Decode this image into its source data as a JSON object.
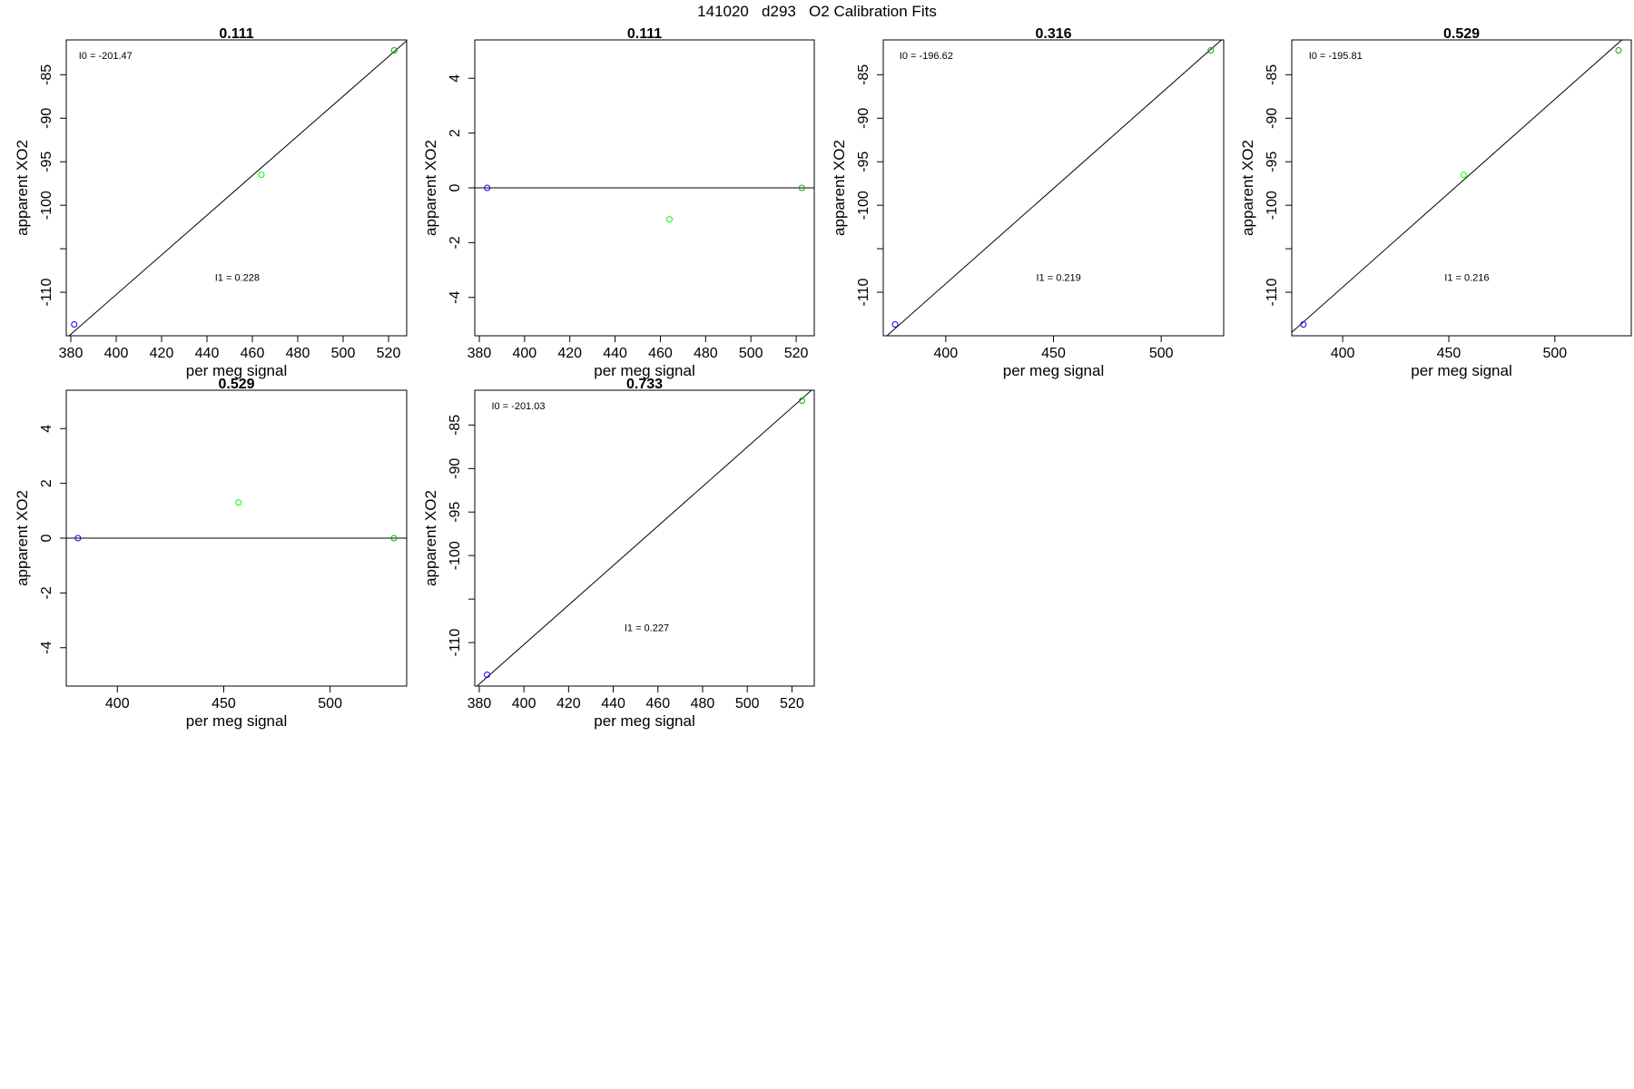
{
  "figure_title": "141020   d293   O2 Calibration Fits",
  "colors": {
    "pt_low": "#0000ff",
    "pt_mid": "#00ff00",
    "pt_high": "#00b000"
  },
  "chart_data": [
    {
      "type": "scatter",
      "title": "0.111",
      "xlabel": "per meg signal",
      "ylabel": "apparent XO2",
      "xlim": [
        378,
        528
      ],
      "ylim": [
        -115,
        -81
      ],
      "xticks": [
        380,
        400,
        420,
        440,
        460,
        480,
        500,
        520
      ],
      "yticks": [
        -110,
        -105,
        -100,
        -95,
        -90,
        -85
      ],
      "yticklabels": [
        "-110",
        "",
        "-100",
        "-95",
        "-90",
        "-85"
      ],
      "points": [
        {
          "x": 381.5,
          "y": -113.7,
          "color": "pt_low"
        },
        {
          "x": 464,
          "y": -96.5,
          "color": "pt_mid"
        },
        {
          "x": 522.5,
          "y": -82.2,
          "color": "pt_high"
        }
      ],
      "fit": {
        "intercept": -201.47,
        "slope": 0.228
      },
      "annotations": [
        {
          "text": "I0 =  -201.47",
          "x": 383.5,
          "y": -83.2
        },
        {
          "text": "I1 =  0.228",
          "x": 443.5,
          "y": -108.7
        }
      ]
    },
    {
      "type": "scatter",
      "title": "0.111",
      "xlabel": "per meg signal",
      "ylabel": "apparent XO2",
      "xlim": [
        378,
        528
      ],
      "ylim": [
        -5.4,
        5.4
      ],
      "xticks": [
        380,
        400,
        420,
        440,
        460,
        480,
        500,
        520
      ],
      "yticks": [
        -4,
        -2,
        0,
        2,
        4
      ],
      "yticklabels": [
        "-4",
        "-2",
        "0",
        "2",
        "4"
      ],
      "points": [
        {
          "x": 383.5,
          "y": 0,
          "color": "pt_low"
        },
        {
          "x": 464,
          "y": -1.15,
          "color": "pt_mid"
        },
        {
          "x": 522.5,
          "y": 0,
          "color": "pt_high"
        }
      ],
      "fit": {
        "intercept": 0,
        "slope": 0
      },
      "annotations": []
    },
    {
      "type": "scatter",
      "title": "0.316",
      "xlabel": "per meg signal",
      "ylabel": "apparent XO2",
      "xlim": [
        371,
        529
      ],
      "ylim": [
        -115,
        -81
      ],
      "xticks": [
        400,
        450,
        500
      ],
      "yticks": [
        -110,
        -105,
        -100,
        -95,
        -90,
        -85
      ],
      "yticklabels": [
        "-110",
        "",
        "-100",
        "-95",
        "-90",
        "-85"
      ],
      "points": [
        {
          "x": 376.5,
          "y": -113.7,
          "color": "pt_low"
        },
        {
          "x": 523,
          "y": -82.2,
          "color": "pt_high"
        }
      ],
      "fit": {
        "intercept": -196.62,
        "slope": 0.219
      },
      "annotations": [
        {
          "text": "I0 =  -196.62",
          "x": 378.5,
          "y": -83.2
        },
        {
          "text": "I1 =  0.219",
          "x": 442,
          "y": -108.7
        }
      ]
    },
    {
      "type": "scatter",
      "title": "0.529",
      "xlabel": "per meg signal",
      "ylabel": "apparent XO2",
      "xlim": [
        376,
        536
      ],
      "ylim": [
        -115,
        -81
      ],
      "xticks": [
        400,
        450,
        500
      ],
      "yticks": [
        -110,
        -105,
        -100,
        -95,
        -90,
        -85
      ],
      "yticklabels": [
        "-110",
        "",
        "-100",
        "-95",
        "-90",
        "-85"
      ],
      "points": [
        {
          "x": 381.5,
          "y": -113.7,
          "color": "pt_low"
        },
        {
          "x": 457,
          "y": -96.5,
          "color": "pt_mid"
        },
        {
          "x": 530,
          "y": -82.2,
          "color": "pt_high"
        }
      ],
      "fit": {
        "intercept": -195.81,
        "slope": 0.216
      },
      "annotations": [
        {
          "text": "I0 =  -195.81",
          "x": 384,
          "y": -83.2
        },
        {
          "text": "I1 =  0.216",
          "x": 448,
          "y": -108.7
        }
      ]
    },
    {
      "type": "scatter",
      "title": "0.529",
      "xlabel": "per meg signal",
      "ylabel": "apparent XO2",
      "xlim": [
        376,
        536
      ],
      "ylim": [
        -5.4,
        5.4
      ],
      "xticks": [
        400,
        450,
        500
      ],
      "yticks": [
        -4,
        -2,
        0,
        2,
        4
      ],
      "yticklabels": [
        "-4",
        "-2",
        "0",
        "2",
        "4"
      ],
      "points": [
        {
          "x": 381.5,
          "y": 0,
          "color": "pt_low"
        },
        {
          "x": 457,
          "y": 1.3,
          "color": "pt_mid"
        },
        {
          "x": 530,
          "y": 0,
          "color": "pt_high"
        }
      ],
      "fit": {
        "intercept": 0,
        "slope": 0
      },
      "annotations": []
    },
    {
      "type": "scatter",
      "title": "0.733",
      "xlabel": "per meg signal",
      "ylabel": "apparent XO2",
      "xlim": [
        378,
        530
      ],
      "ylim": [
        -115,
        -81
      ],
      "xticks": [
        380,
        400,
        420,
        440,
        460,
        480,
        500,
        520
      ],
      "yticks": [
        -110,
        -105,
        -100,
        -95,
        -90,
        -85
      ],
      "yticklabels": [
        "-110",
        "",
        "-100",
        "-95",
        "-90",
        "-85"
      ],
      "points": [
        {
          "x": 383.5,
          "y": -113.7,
          "color": "pt_low"
        },
        {
          "x": 524.5,
          "y": -82.2,
          "color": "pt_high"
        }
      ],
      "fit": {
        "intercept": -201.03,
        "slope": 0.227
      },
      "annotations": [
        {
          "text": "I0 =  -201.03",
          "x": 385.5,
          "y": -83.2
        },
        {
          "text": "I1 =  0.227",
          "x": 445,
          "y": -108.7
        }
      ]
    }
  ]
}
